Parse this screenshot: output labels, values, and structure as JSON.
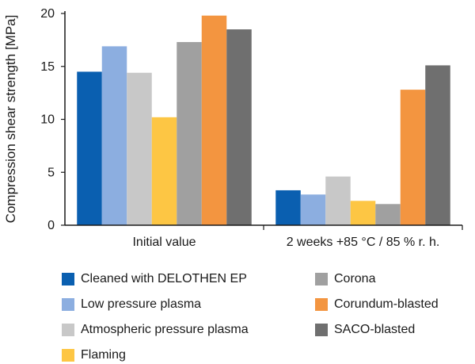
{
  "chart_data": {
    "type": "bar",
    "ylabel": "Compression shear strength [MPa]",
    "xlabel": "",
    "ylim": [
      0,
      20
    ],
    "yticks": [
      0,
      5,
      10,
      15,
      20
    ],
    "grid": false,
    "legend_position": "bottom",
    "categories": [
      "Initial value",
      "2 weeks +85 °C / 85 % r. h."
    ],
    "series": [
      {
        "name": "Cleaned with DELOTHEN EP",
        "color": "#0a5fb0",
        "values": [
          14.5,
          3.3
        ]
      },
      {
        "name": "Low pressure plasma",
        "color": "#8caee0",
        "values": [
          16.9,
          2.9
        ]
      },
      {
        "name": "Atmospheric pressure plasma",
        "color": "#c8c8c8",
        "values": [
          14.4,
          4.6
        ]
      },
      {
        "name": "Flaming",
        "color": "#fdc644",
        "values": [
          10.2,
          2.3
        ]
      },
      {
        "name": "Corona",
        "color": "#a0a0a0",
        "values": [
          17.3,
          2.0
        ]
      },
      {
        "name": "Corundum-blasted",
        "color": "#f39540",
        "values": [
          19.8,
          12.8
        ]
      },
      {
        "name": "SACO-blasted",
        "color": "#6f6f6f",
        "values": [
          18.5,
          15.1
        ]
      }
    ]
  }
}
